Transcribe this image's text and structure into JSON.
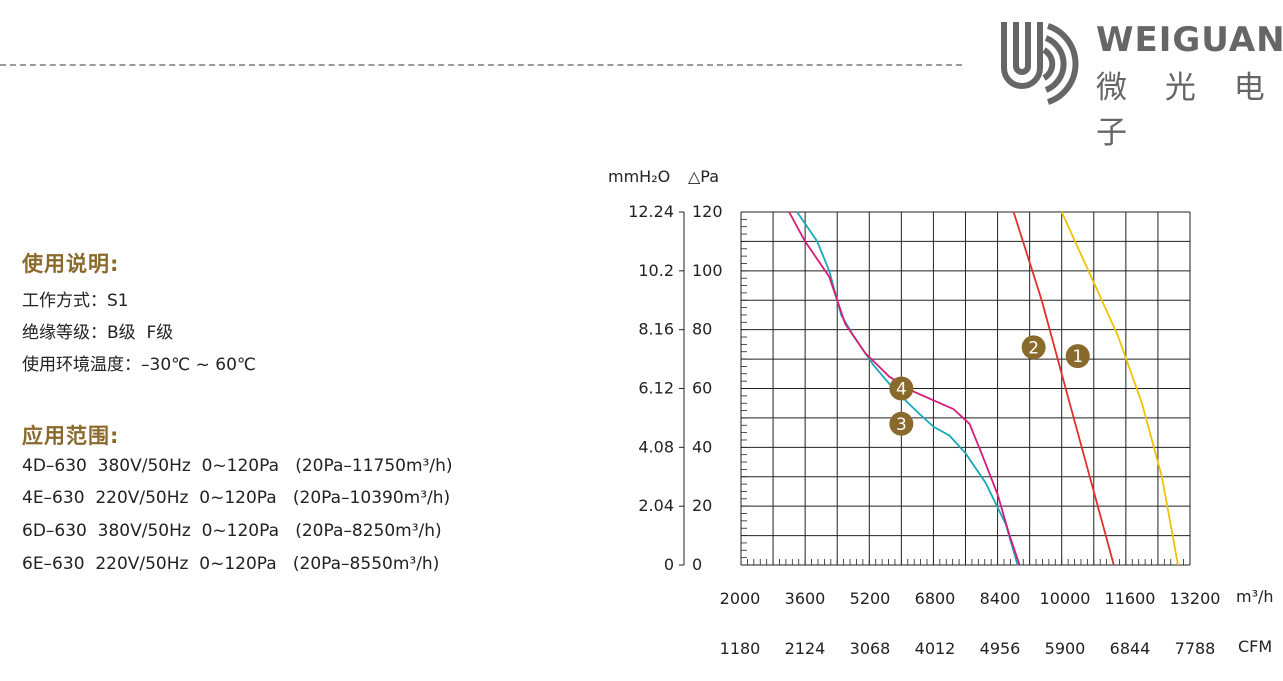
{
  "brand": {
    "name_en": "WEIGUANG",
    "name_cn": "微 光 电 子",
    "logo_color": "#666666"
  },
  "usage": {
    "title": "使用说明:",
    "lines": [
      "工作方式：S1",
      "绝缘等级：B级  F级",
      "使用环境温度：–30℃ ~ 60℃"
    ]
  },
  "application": {
    "title": "应用范围:",
    "models": [
      "4D–630  380V/50Hz  0~120Pa   (20Pa–11750m³/h)",
      "4E–630  220V/50Hz  0~120Pa   (20Pa–10390m³/h)",
      "6D–630  380V/50Hz  0~120Pa   (20Pa–8250m³/h)",
      "6E–630  220V/50Hz  0~120Pa   (20Pa–8550m³/h)"
    ]
  },
  "chart_data": {
    "type": "line",
    "ylabel_left": "mmH₂O",
    "ylabel_right": "△Pa",
    "y_ticks_mmh2o": [
      "12.24",
      "10.2",
      "8.16",
      "6.12",
      "4.08",
      "2.04",
      "0"
    ],
    "y_ticks_pa": [
      "120",
      "100",
      "80",
      "60",
      "40",
      "20",
      "0"
    ],
    "ylim": [
      0,
      120
    ],
    "x_ticks_m3h": [
      "2000",
      "3600",
      "5200",
      "6800",
      "8400",
      "10000",
      "11600",
      "13200"
    ],
    "x_unit_m3h": "m³/h",
    "x_ticks_cfm": [
      "1180",
      "2124",
      "3068",
      "4012",
      "4956",
      "5900",
      "6844",
      "7788"
    ],
    "x_unit_cfm": "CFM",
    "xlim": [
      2000,
      13200
    ],
    "grid": true,
    "series": [
      {
        "marker": "1",
        "color": "#f2c200",
        "points": [
          [
            10000,
            120
          ],
          [
            10800,
            96
          ],
          [
            11400,
            78
          ],
          [
            12000,
            55
          ],
          [
            12500,
            30
          ],
          [
            12900,
            0
          ]
        ]
      },
      {
        "marker": "2",
        "color": "#e0302a",
        "points": [
          [
            8800,
            120
          ],
          [
            9500,
            90
          ],
          [
            10200,
            55
          ],
          [
            10800,
            25
          ],
          [
            11300,
            0
          ]
        ]
      },
      {
        "marker": "3",
        "color": "#1aa8b8",
        "points": [
          [
            3400,
            120
          ],
          [
            3900,
            110
          ],
          [
            4200,
            100
          ],
          [
            4500,
            85
          ],
          [
            4800,
            78
          ],
          [
            5300,
            68
          ],
          [
            5800,
            60
          ],
          [
            6400,
            52
          ],
          [
            6800,
            47
          ],
          [
            7200,
            44
          ],
          [
            7600,
            38
          ],
          [
            8100,
            28
          ],
          [
            8600,
            14
          ],
          [
            8900,
            0
          ]
        ]
      },
      {
        "marker": "4",
        "color": "#d81b77",
        "points": [
          [
            3200,
            120
          ],
          [
            3600,
            110
          ],
          [
            4200,
            98
          ],
          [
            4600,
            82
          ],
          [
            5100,
            72
          ],
          [
            5700,
            64
          ],
          [
            6300,
            59
          ],
          [
            6800,
            56
          ],
          [
            7300,
            53
          ],
          [
            7700,
            48
          ],
          [
            8000,
            38
          ],
          [
            8400,
            24
          ],
          [
            8700,
            10
          ],
          [
            8950,
            0
          ]
        ]
      }
    ],
    "markers": [
      {
        "label": "1",
        "x": 10400,
        "y": 71,
        "color": "#8a6a2c"
      },
      {
        "label": "2",
        "x": 9300,
        "y": 74,
        "color": "#8a6a2c"
      },
      {
        "label": "4",
        "x": 6000,
        "y": 60,
        "color": "#8a6a2c"
      },
      {
        "label": "3",
        "x": 6000,
        "y": 48,
        "color": "#8a6a2c"
      }
    ]
  }
}
